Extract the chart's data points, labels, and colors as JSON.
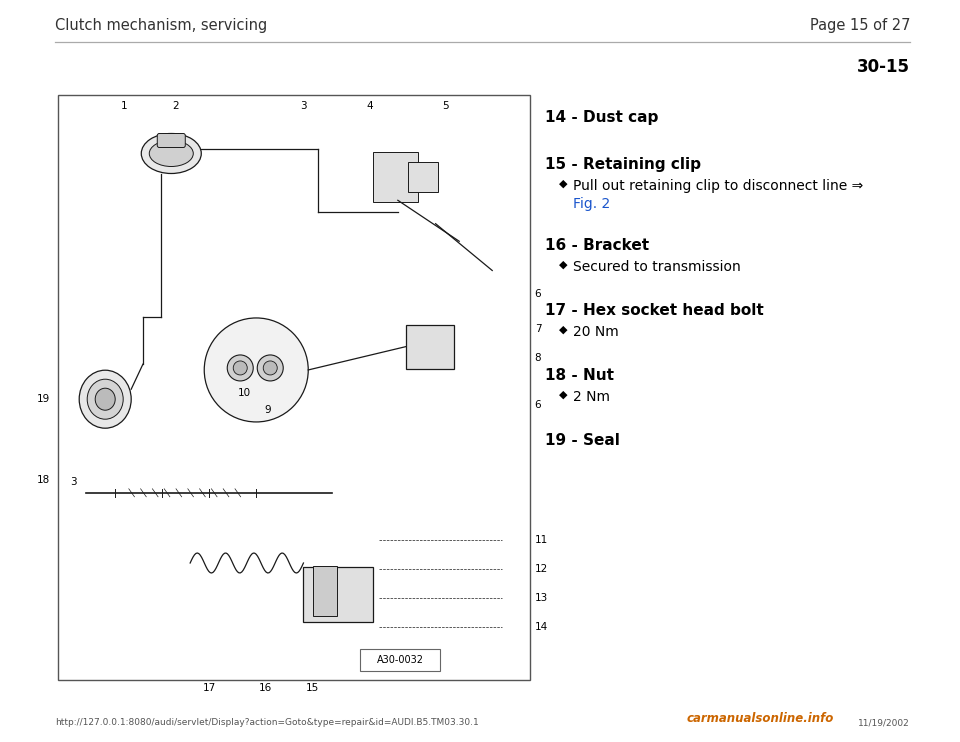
{
  "bg_color": "#ffffff",
  "header_left": "Clutch mechanism, servicing",
  "header_right": "Page 15 of 27",
  "section_number": "30-15",
  "footer_url": "http://127.0.0.1:8080/audi/servlet/Display?action=Goto&type=repair&id=AUDI.B5.TM03.30.1",
  "footer_right": "11/19/2002",
  "footer_logo": "carmanualsonline.info",
  "items": [
    {
      "number": "14",
      "label": "Dust cap",
      "bullets": []
    },
    {
      "number": "15",
      "label": "Retaining clip",
      "bullets": [
        {
          "text": "Pull out retaining clip to disconnect line ⇒",
          "continuation": "Fig. 2",
          "link": true
        }
      ]
    },
    {
      "number": "16",
      "label": "Bracket",
      "bullets": [
        {
          "text": "Secured to transmission",
          "link": false
        }
      ]
    },
    {
      "number": "17",
      "label": "Hex socket head bolt",
      "bullets": [
        {
          "text": "20 Nm",
          "link": false
        }
      ]
    },
    {
      "number": "18",
      "label": "Nut",
      "bullets": [
        {
          "text": "2 Nm",
          "link": false
        }
      ]
    },
    {
      "number": "19",
      "label": "Seal",
      "bullets": []
    }
  ],
  "diagram_label": "A30-0032",
  "fig_width": 9.6,
  "fig_height": 7.42,
  "dpi": 100
}
